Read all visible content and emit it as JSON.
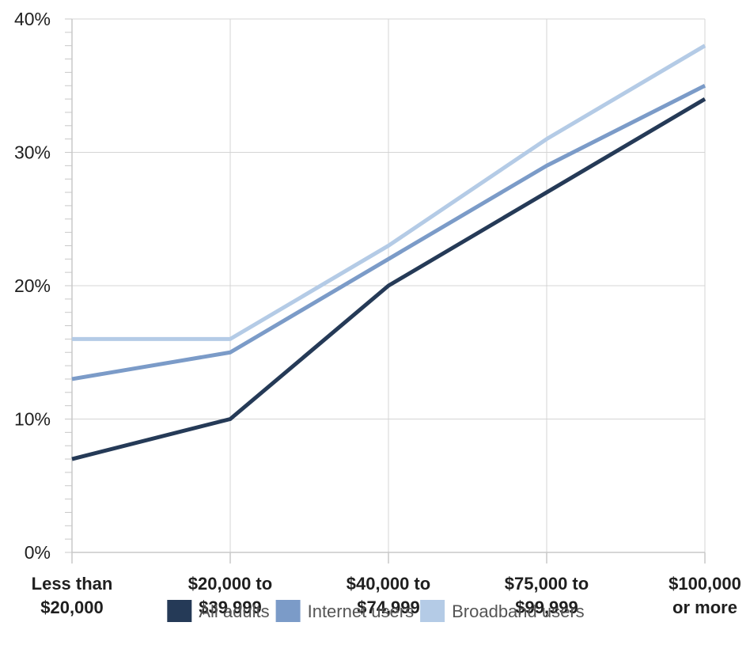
{
  "chart_data": {
    "type": "line",
    "categories": [
      [
        "Less than",
        "$20,000"
      ],
      [
        "$20,000 to",
        "$39,999"
      ],
      [
        "$40,000 to",
        "$74,999"
      ],
      [
        "$75,000 to",
        "$99,999"
      ],
      [
        "$100,000",
        "or more"
      ]
    ],
    "series": [
      {
        "name": "All adults",
        "color": "#253a57",
        "values": [
          7,
          10,
          20,
          27,
          34
        ]
      },
      {
        "name": "Internet users",
        "color": "#7b9bc8",
        "values": [
          13,
          15,
          22,
          29,
          35
        ]
      },
      {
        "name": "Broadband users",
        "color": "#b4cbe6",
        "values": [
          16,
          16,
          23,
          31,
          38
        ]
      }
    ],
    "y_ticks": [
      "0%",
      "10%",
      "20%",
      "30%",
      "40%"
    ],
    "ylim": [
      0,
      40
    ],
    "grid": true,
    "legend_position": "bottom-center"
  }
}
